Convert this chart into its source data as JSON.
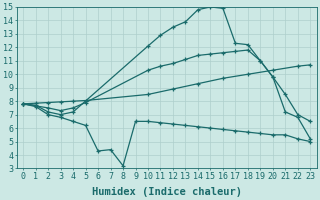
{
  "bg_color": "#cce8e4",
  "line_color": "#1a6b6b",
  "grid_color": "#aecfcc",
  "xlabel": "Humidex (Indice chaleur)",
  "xlim": [
    -0.5,
    23.5
  ],
  "ylim": [
    3,
    15
  ],
  "xticks": [
    0,
    1,
    2,
    3,
    4,
    5,
    6,
    7,
    8,
    9,
    10,
    11,
    12,
    13,
    14,
    15,
    16,
    17,
    18,
    19,
    20,
    21,
    22,
    23
  ],
  "yticks": [
    3,
    4,
    5,
    6,
    7,
    8,
    9,
    10,
    11,
    12,
    13,
    14,
    15
  ],
  "line1_x": [
    0,
    1,
    2,
    3,
    4,
    10,
    11,
    12,
    13,
    14,
    15,
    16,
    17,
    18,
    19,
    20,
    21,
    22,
    23
  ],
  "line1_y": [
    7.8,
    7.7,
    7.2,
    7.0,
    7.2,
    12.1,
    12.9,
    13.5,
    13.9,
    14.8,
    15.0,
    14.9,
    12.3,
    12.2,
    11.0,
    9.8,
    7.2,
    6.8,
    5.2
  ],
  "line2_x": [
    0,
    2,
    3,
    4,
    5,
    10,
    11,
    12,
    13,
    14,
    15,
    16,
    17,
    18,
    19,
    20,
    21,
    22,
    23
  ],
  "line2_y": [
    7.8,
    7.5,
    7.3,
    7.5,
    7.9,
    10.3,
    10.6,
    10.8,
    11.1,
    11.4,
    11.5,
    11.6,
    11.7,
    11.8,
    11.0,
    9.8,
    8.5,
    7.0,
    6.5
  ],
  "line3_x": [
    0,
    1,
    2,
    3,
    4,
    5,
    10,
    12,
    14,
    16,
    18,
    20,
    22,
    23
  ],
  "line3_y": [
    7.8,
    7.85,
    7.9,
    7.95,
    8.0,
    8.05,
    8.5,
    8.9,
    9.3,
    9.7,
    10.0,
    10.3,
    10.6,
    10.7
  ],
  "line4_x": [
    0,
    1,
    2,
    3,
    4,
    5,
    6,
    7,
    8,
    9,
    10,
    11,
    12,
    13,
    14,
    15,
    16,
    17,
    18,
    19,
    20,
    21,
    22,
    23
  ],
  "line4_y": [
    7.8,
    7.6,
    7.0,
    6.8,
    6.5,
    6.2,
    4.3,
    4.4,
    3.2,
    6.5,
    6.5,
    6.4,
    6.3,
    6.2,
    6.1,
    6.0,
    5.9,
    5.8,
    5.7,
    5.6,
    5.5,
    5.5,
    5.2,
    5.0
  ],
  "font_size": 6,
  "label_font_size": 7.5,
  "figsize": [
    3.2,
    2.0
  ],
  "dpi": 100
}
